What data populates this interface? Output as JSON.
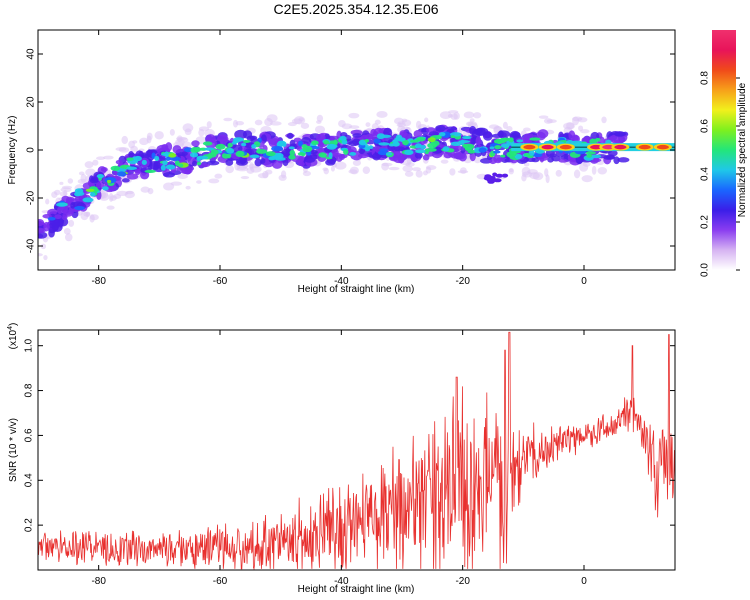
{
  "figure": {
    "title": "C2E5.2025.354.12.35.E06"
  },
  "chart_data": [
    {
      "type": "heatmap",
      "name": "spectrogram",
      "xlabel": "Height of straight line (km)",
      "ylabel": "Frequency (Hz)",
      "xlim": [
        -90,
        15
      ],
      "ylim": [
        -50,
        50
      ],
      "xticks": [
        "-80",
        "-60",
        "-40",
        "-20",
        "0"
      ],
      "yticks": [
        "-40",
        "-20",
        "0",
        "20",
        "40"
      ],
      "ridge_frequency_hz": {
        "x": [
          -90,
          -85,
          -80,
          -75,
          -70,
          -65,
          -60,
          -55,
          -50,
          -45,
          -40,
          -35,
          -30,
          -25,
          -20,
          -15,
          -10,
          -5,
          0,
          5,
          10,
          15
        ],
        "y": [
          -35,
          -24,
          -14,
          -7,
          -5,
          -3,
          0,
          1,
          0,
          0,
          1,
          2,
          2,
          3,
          3,
          1,
          1,
          1,
          0,
          1,
          1,
          2
        ]
      },
      "colorbar": {
        "label": "Normalized spectral amplitude",
        "ticks": [
          "0.0",
          "0.2",
          "0.4",
          "0.6",
          "0.8"
        ],
        "range": [
          0,
          1
        ],
        "colors": [
          "#ffffff",
          "#d6b3f2",
          "#8a3df0",
          "#3a1ee8",
          "#1a66ff",
          "#1fc8e8",
          "#23e67a",
          "#7ef01e",
          "#f2f01c",
          "#f7a01a",
          "#f04a1a",
          "#e8145a",
          "#f0306e"
        ]
      }
    },
    {
      "type": "line",
      "name": "snr",
      "xlabel": "Height of straight line (km)",
      "ylabel": "SNR (10 * v/v)",
      "scale_note": "(x10",
      "scale_exp": "4",
      "xlim": [
        -90,
        15
      ],
      "ylim": [
        0,
        1.07
      ],
      "xticks": [
        "-80",
        "-60",
        "-40",
        "-20",
        "0"
      ],
      "yticks": [
        "0.2",
        "0.4",
        "0.6",
        "0.8",
        "1.0"
      ],
      "line_color": "#e8302e",
      "envelope": {
        "x": [
          -90,
          -80,
          -70,
          -60,
          -50,
          -45,
          -40,
          -35,
          -30,
          -25,
          -22,
          -20,
          -15,
          -13,
          -12,
          -10,
          -5,
          0,
          5,
          8,
          10,
          12,
          14,
          15
        ],
        "base": [
          0.1,
          0.1,
          0.09,
          0.1,
          0.13,
          0.15,
          0.18,
          0.22,
          0.27,
          0.3,
          0.33,
          0.35,
          0.4,
          0.42,
          0.45,
          0.5,
          0.55,
          0.6,
          0.65,
          0.72,
          0.6,
          0.4,
          0.55,
          0.4
        ],
        "amp": [
          0.08,
          0.1,
          0.09,
          0.12,
          0.16,
          0.2,
          0.25,
          0.3,
          0.35,
          0.4,
          0.45,
          0.5,
          0.45,
          0.55,
          0.35,
          0.2,
          0.1,
          0.08,
          0.08,
          0.12,
          0.15,
          0.25,
          0.3,
          0.15
        ]
      },
      "peaks": {
        "x": [
          -21,
          -13,
          -12.3,
          8,
          14
        ],
        "y": [
          0.86,
          0.98,
          1.06,
          1.0,
          1.05
        ]
      }
    }
  ]
}
